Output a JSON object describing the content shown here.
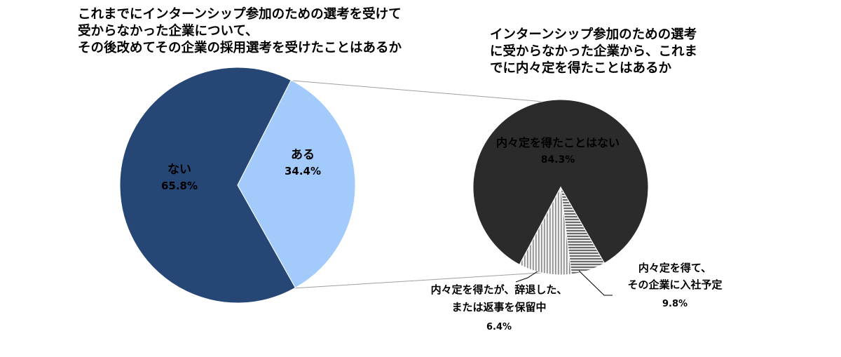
{
  "chart_data": [
    {
      "type": "pie",
      "title_lines": [
        "これまでにインターンシップ参加のための選考を受けて",
        "受からなかった企業について、",
        "その後改めてその企業の採用選考を受けたことはあるか"
      ],
      "slices": [
        {
          "label": "ない",
          "value_label": "65.8%",
          "value": 65.8,
          "color": "#264776",
          "text_color": "#ffffff"
        },
        {
          "label": "ある",
          "value_label": "34.4%",
          "value": 34.4,
          "color": "#a2cbfb",
          "text_color": "#000000"
        }
      ]
    },
    {
      "type": "pie",
      "title_lines": [
        "インターンシップ参加のための選考",
        "に受からなかった企業から、これま",
        "でに内々定を得たことはあるか"
      ],
      "slices": [
        {
          "label_lines": [
            "内々定を得たことはない"
          ],
          "value_label": "84.3%",
          "value": 84.3,
          "color": "#2b2b2b",
          "text_color": "#ffffff",
          "pattern": "solid"
        },
        {
          "label_lines": [
            "内々定を得て、",
            "その企業に入社予定"
          ],
          "value_label": "9.8%",
          "value": 9.8,
          "color": "#d6d6d6",
          "text_color": "#000000",
          "pattern": "vertical-lines"
        },
        {
          "label_lines": [
            "内々定を得たが、辞退した、",
            "または返事を保留中"
          ],
          "value_label": "6.4%",
          "value": 6.4,
          "color": "#9a9a9a",
          "text_color": "#000000",
          "pattern": "horizontal-lines"
        }
      ]
    }
  ]
}
